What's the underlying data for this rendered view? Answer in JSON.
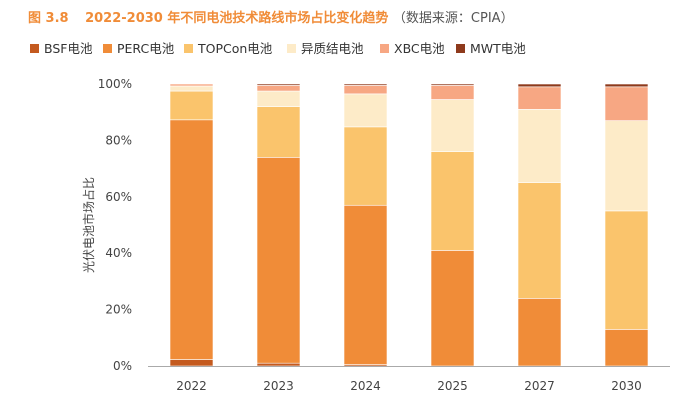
{
  "chart_data": {
    "type": "bar",
    "stacked": true,
    "title_prefix": "图 3.8",
    "title": "2022-2030 年不同电池技术路线市场占比变化趋势",
    "title_source": "（数据来源：CPIA）",
    "ylabel": "光伏电池市场占比",
    "xlabel": "",
    "ylim": [
      0,
      100
    ],
    "yticks": [
      "0%",
      "20%",
      "40%",
      "60%",
      "80%",
      "100%"
    ],
    "yticks_values": [
      0,
      20,
      40,
      60,
      80,
      100
    ],
    "categories": [
      "2022",
      "2023",
      "2024",
      "2025",
      "2027",
      "2030"
    ],
    "grid": false,
    "legend_position": "top",
    "series": [
      {
        "name": "BSF电池",
        "color": "#C45A1F",
        "values": [
          2.3,
          1.0,
          0.5,
          0,
          0,
          0
        ]
      },
      {
        "name": "PERC电池",
        "color": "#F08C38",
        "values": [
          85.0,
          73.0,
          56.5,
          41.0,
          24.0,
          13.0
        ]
      },
      {
        "name": "TOPCon电池",
        "color": "#FAC46C",
        "values": [
          10.2,
          18.0,
          27.8,
          35.0,
          41.0,
          42.0
        ]
      },
      {
        "name": "异质结电池",
        "color": "#FDEBC8",
        "values": [
          1.8,
          5.5,
          11.7,
          18.5,
          26.0,
          32.0
        ]
      },
      {
        "name": "XBC电池",
        "color": "#F7A783",
        "values": [
          0.7,
          2.0,
          3.0,
          5.0,
          8.0,
          12.0
        ]
      },
      {
        "name": "MWT电池",
        "color": "#8E3A1C",
        "values": [
          0,
          0.5,
          0.5,
          0.5,
          1.0,
          1.0
        ]
      }
    ]
  },
  "colors": {
    "title": "#F08C38",
    "axis": "#aaaaaa"
  }
}
